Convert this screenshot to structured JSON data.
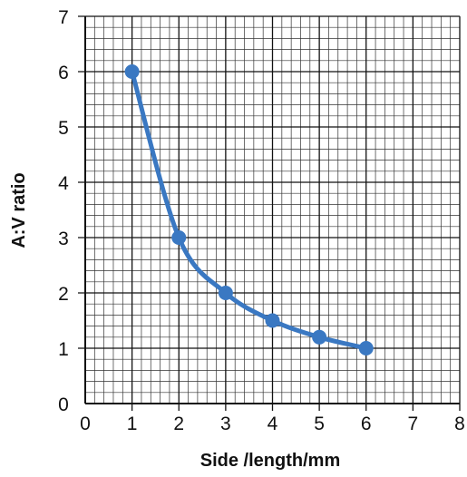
{
  "chart_data": {
    "type": "line",
    "title": "",
    "xlabel": "Side /length/mm",
    "ylabel": "A:V ratio",
    "xlim": [
      0,
      8
    ],
    "ylim": [
      0,
      7
    ],
    "xticks": [
      "0",
      "1",
      "2",
      "3",
      "4",
      "5",
      "6",
      "7",
      "8"
    ],
    "yticks": [
      "0",
      "1",
      "2",
      "3",
      "4",
      "5",
      "6",
      "7"
    ],
    "grid": true,
    "grid_style": "graph paper (major every 1 unit, minor every 0.2 units)",
    "smooth": true,
    "markers": "filled circles",
    "series": [
      {
        "color": "#3a78c2",
        "x": [
          1,
          2,
          3,
          4,
          5,
          6
        ],
        "y": [
          6,
          3,
          2,
          1.5,
          1.2,
          1
        ]
      }
    ]
  }
}
